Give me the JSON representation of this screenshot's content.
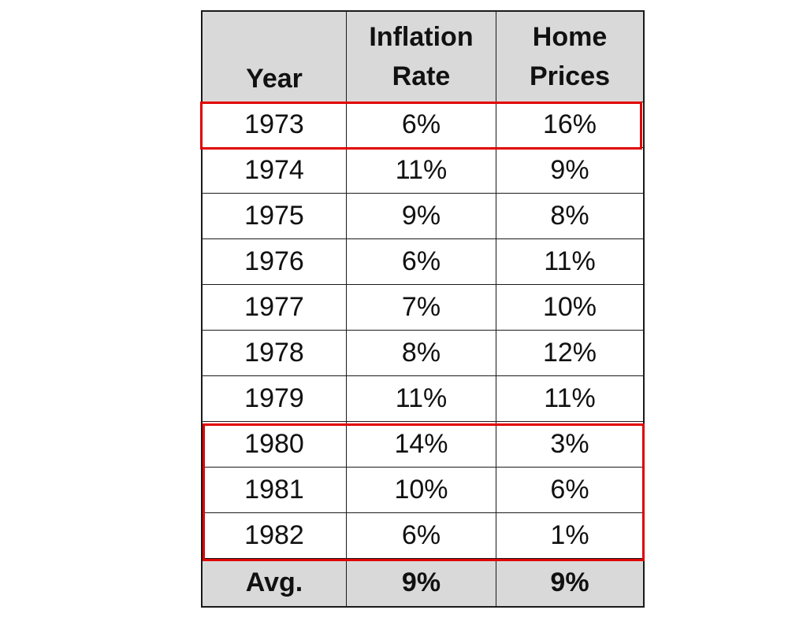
{
  "chart_data": {
    "type": "table",
    "columns": [
      "Year",
      "Inflation Rate",
      "Home Prices"
    ],
    "header": {
      "year": "Year",
      "inflation_line1": "Inflation",
      "inflation_line2": "Rate",
      "home_line1": "Home",
      "home_line2": "Prices"
    },
    "rows": [
      {
        "year": "1973",
        "inflation": "6%",
        "home": "16%"
      },
      {
        "year": "1974",
        "inflation": "11%",
        "home": "9%"
      },
      {
        "year": "1975",
        "inflation": "9%",
        "home": "8%"
      },
      {
        "year": "1976",
        "inflation": "6%",
        "home": "11%"
      },
      {
        "year": "1977",
        "inflation": "7%",
        "home": "10%"
      },
      {
        "year": "1978",
        "inflation": "8%",
        "home": "12%"
      },
      {
        "year": "1979",
        "inflation": "11%",
        "home": "11%"
      },
      {
        "year": "1980",
        "inflation": "14%",
        "home": "3%"
      },
      {
        "year": "1981",
        "inflation": "10%",
        "home": "6%"
      },
      {
        "year": "1982",
        "inflation": "6%",
        "home": "1%"
      }
    ],
    "footer": {
      "label": "Avg.",
      "inflation": "9%",
      "home": "9%"
    },
    "highlighted_rows": [
      "1973",
      "1980",
      "1981",
      "1982"
    ],
    "highlight_color": "#e00000",
    "header_color": "#d9d9d9"
  }
}
